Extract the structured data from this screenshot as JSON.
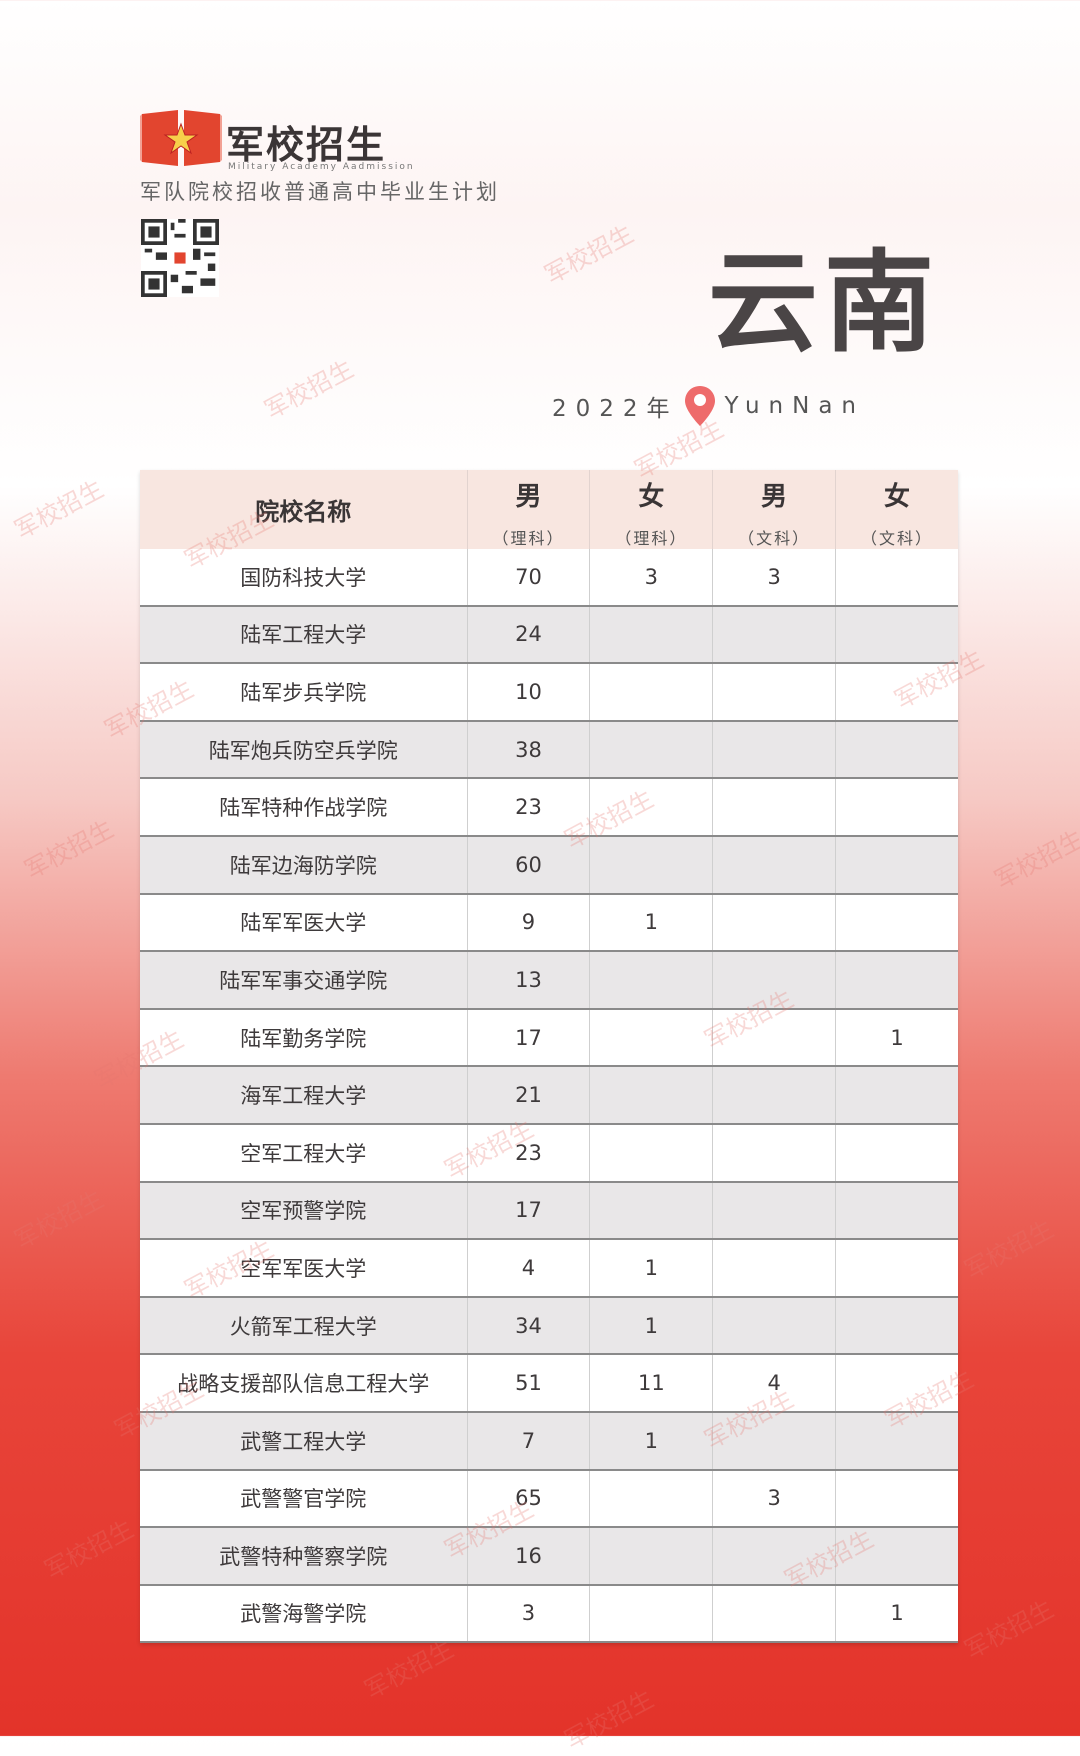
{
  "header": {
    "brand": "军校招生",
    "brand_en": "Military Academy Aadmission",
    "subtitle": "军队院校招收普通高中毕业生计划",
    "province": "云南",
    "year": "2022年",
    "province_en": "YunNan",
    "watermark": "军校招生"
  },
  "colors": {
    "accent": "#e3332a",
    "header_bg": "#f8e6e0",
    "alt_row": "#e9e7e8"
  },
  "table": {
    "columns": [
      {
        "label": "院校名称"
      },
      {
        "label": "男",
        "sub": "（理科）"
      },
      {
        "label": "女",
        "sub": "（理科）"
      },
      {
        "label": "男",
        "sub": "（文科）"
      },
      {
        "label": "女",
        "sub": "（文科）"
      }
    ],
    "rows": [
      [
        "国防科技大学",
        "70",
        "3",
        "3",
        ""
      ],
      [
        "陆军工程大学",
        "24",
        "",
        "",
        ""
      ],
      [
        "陆军步兵学院",
        "10",
        "",
        "",
        ""
      ],
      [
        "陆军炮兵防空兵学院",
        "38",
        "",
        "",
        ""
      ],
      [
        "陆军特种作战学院",
        "23",
        "",
        "",
        ""
      ],
      [
        "陆军边海防学院",
        "60",
        "",
        "",
        ""
      ],
      [
        "陆军军医大学",
        "9",
        "1",
        "",
        ""
      ],
      [
        "陆军军事交通学院",
        "13",
        "",
        "",
        ""
      ],
      [
        "陆军勤务学院",
        "17",
        "",
        "",
        "1"
      ],
      [
        "海军工程大学",
        "21",
        "",
        "",
        ""
      ],
      [
        "空军工程大学",
        "23",
        "",
        "",
        ""
      ],
      [
        "空军预警学院",
        "17",
        "",
        "",
        ""
      ],
      [
        "空军军医大学",
        "4",
        "1",
        "",
        ""
      ],
      [
        "火箭军工程大学",
        "34",
        "1",
        "",
        ""
      ],
      [
        "战略支援部队信息工程大学",
        "51",
        "11",
        "4",
        ""
      ],
      [
        "武警工程大学",
        "7",
        "1",
        "",
        ""
      ],
      [
        "武警警官学院",
        "65",
        "",
        "3",
        ""
      ],
      [
        "武警特种警察学院",
        "16",
        "",
        "",
        ""
      ],
      [
        "武警海警学院",
        "3",
        "",
        "",
        "1"
      ]
    ]
  }
}
